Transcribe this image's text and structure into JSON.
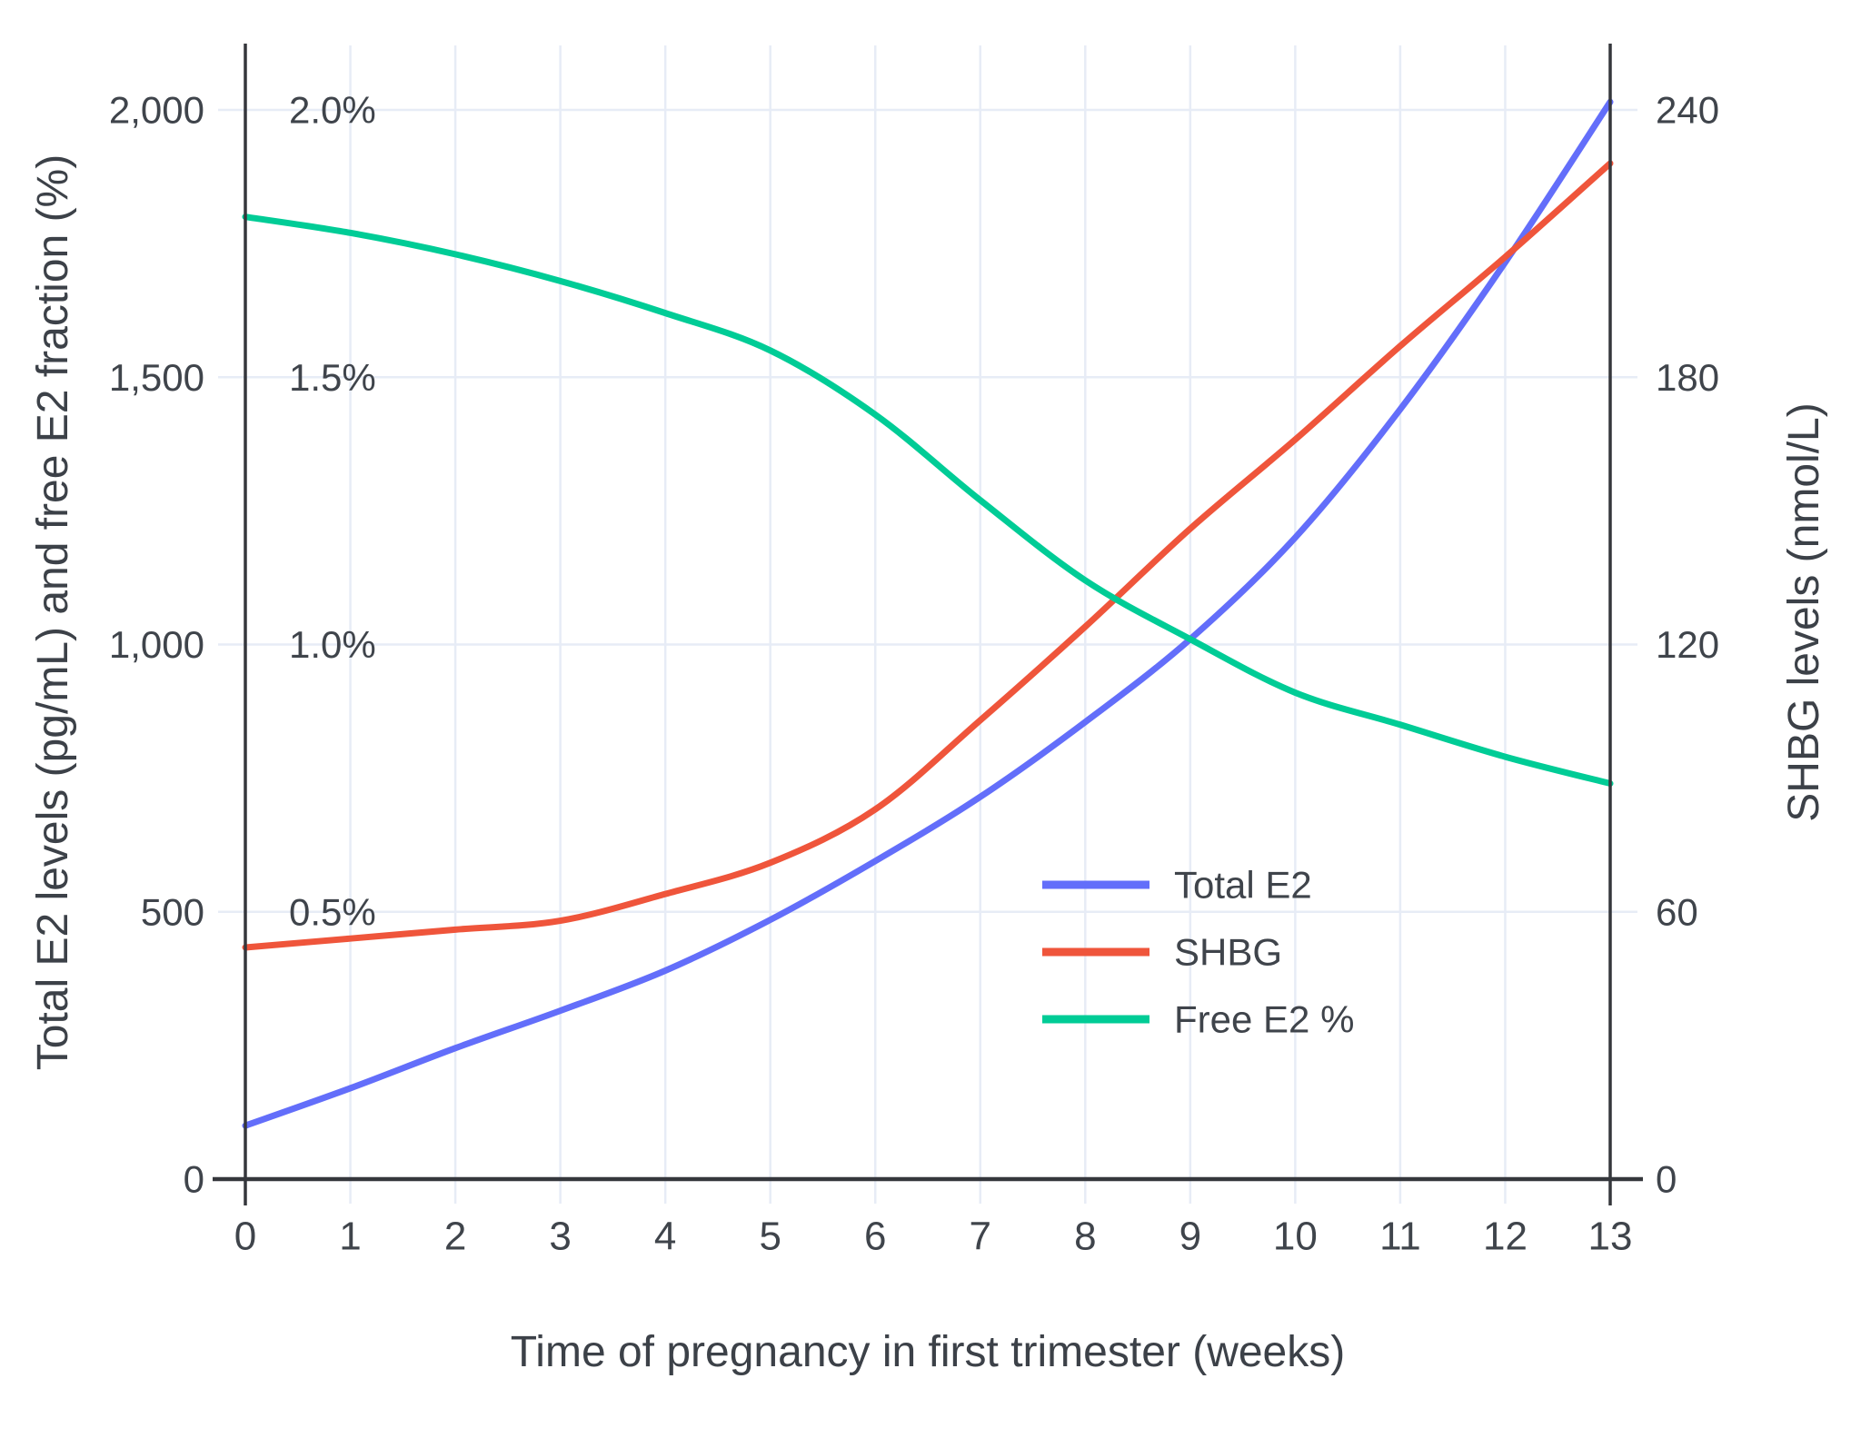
{
  "figure": {
    "x_axis": {
      "title": "Time of pregnancy in first trimester (weeks)",
      "tick_labels": [
        "0",
        "1",
        "2",
        "3",
        "4",
        "5",
        "6",
        "7",
        "8",
        "9",
        "10",
        "11",
        "12",
        "13"
      ]
    },
    "y_left_axis": {
      "title": "Total E2 levels (pg/mL) and free E2 fraction (%)",
      "tick_values": [
        0,
        500,
        1000,
        1500,
        2000
      ],
      "tick_labels": [
        "0",
        "500",
        "1,000",
        "1,500",
        "2,000"
      ],
      "percent_labels": [
        {
          "value": 500,
          "label": "0.5%"
        },
        {
          "value": 1000,
          "label": "1.0%"
        },
        {
          "value": 1500,
          "label": "1.5%"
        },
        {
          "value": 2000,
          "label": "2.0%"
        }
      ]
    },
    "y_right_axis": {
      "title": "SHBG levels (nmol/L)",
      "tick_values": [
        0,
        60,
        120,
        180,
        240
      ],
      "tick_labels": [
        "0",
        "60",
        "120",
        "180",
        "240"
      ]
    },
    "legend": {
      "items": [
        {
          "label": "Total E2",
          "color": "#636EFA"
        },
        {
          "label": "SHBG",
          "color": "#EF553B"
        },
        {
          "label": "Free E2 %",
          "color": "#00CC96"
        }
      ]
    },
    "colors": {
      "total_e2": "#636EFA",
      "shbg": "#EF553B",
      "free_e2": "#00CC96",
      "gridline": "#e7ecf6",
      "axis_line": "#35373c",
      "text": "#3f444b",
      "background": "#ffffff"
    }
  },
  "chart_data": {
    "type": "line",
    "title": "",
    "xlabel": "Time of pregnancy in first trimester (weeks)",
    "ylabel_left": "Total E2 levels (pg/mL) and free E2 fraction (%)",
    "ylabel_right": "SHBG levels (nmol/L)",
    "x": [
      0,
      1,
      2,
      3,
      4,
      5,
      6,
      7,
      8,
      9,
      10,
      11,
      12,
      13
    ],
    "xlim": [
      0,
      13
    ],
    "ylim_left": [
      0,
      2000
    ],
    "ylim_right": [
      0,
      240
    ],
    "grid": true,
    "legend_position": "inside-lower-right",
    "series": [
      {
        "name": "Total E2",
        "axis": "left",
        "units": "pg/mL",
        "color": "#636EFA",
        "values": [
          100,
          170,
          245,
          315,
          390,
          485,
          595,
          715,
          855,
          1010,
          1200,
          1440,
          1715,
          2015
        ]
      },
      {
        "name": "SHBG",
        "axis": "right",
        "units": "nmol/L",
        "color": "#EF553B",
        "values": [
          52,
          54,
          56,
          58,
          64,
          71,
          83,
          103,
          124,
          146,
          166,
          187,
          207,
          228
        ]
      },
      {
        "name": "Free E2 %",
        "axis": "left-percent",
        "units": "%",
        "color": "#00CC96",
        "values": [
          1.8,
          1.77,
          1.73,
          1.68,
          1.62,
          1.55,
          1.43,
          1.27,
          1.12,
          1.01,
          0.91,
          0.85,
          0.79,
          0.74
        ]
      }
    ]
  }
}
